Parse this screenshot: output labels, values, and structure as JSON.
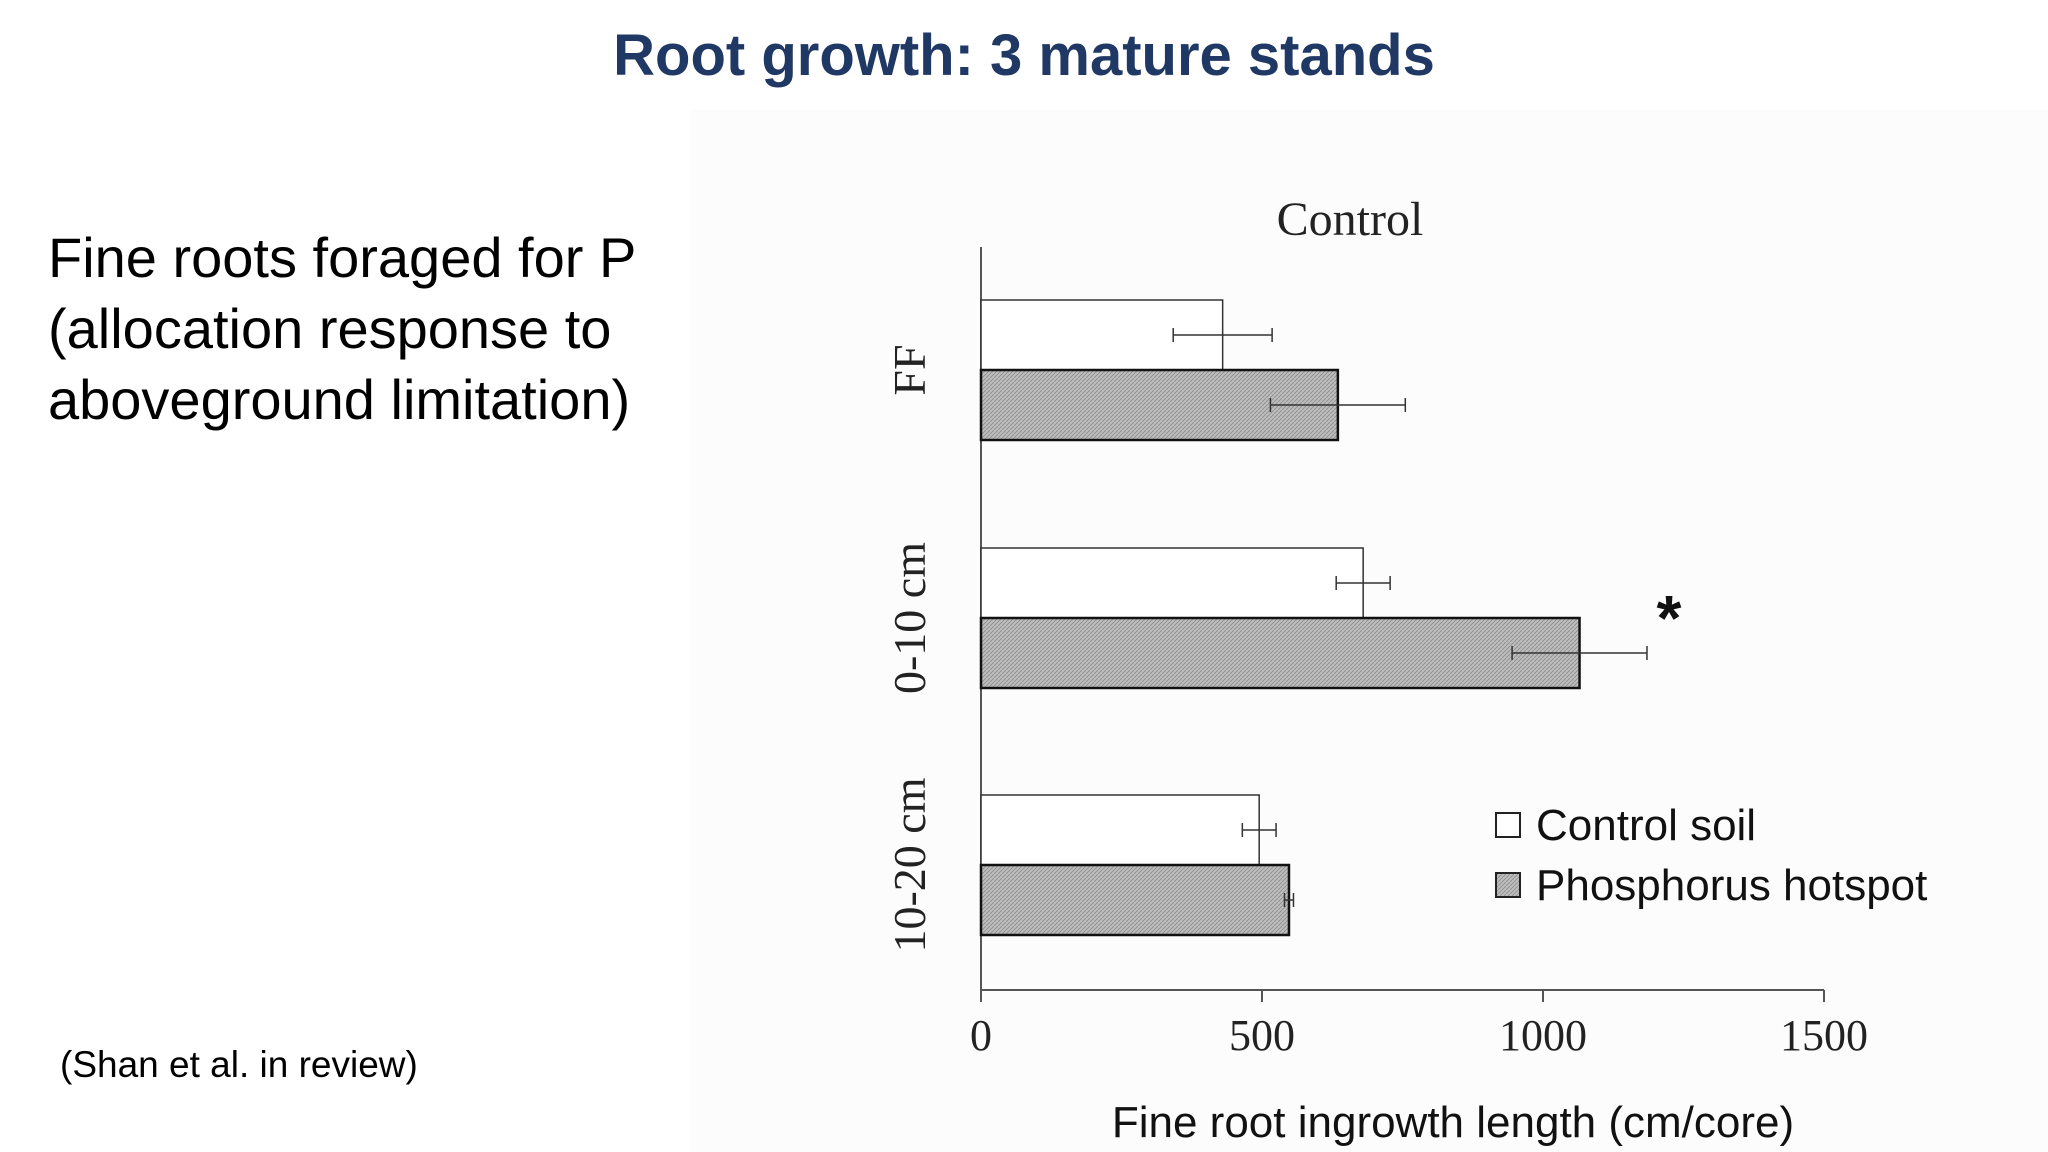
{
  "slide": {
    "title": "Root growth: 3 mature stands",
    "body_lines": [
      "Fine roots foraged for P",
      "(allocation response to",
      "aboveground limitation)"
    ],
    "citation": "(Shan et al. in review)"
  },
  "colors": {
    "title": "#1f3864",
    "bar_control": "#ffffff",
    "bar_phosphorus": "#bdbdbd",
    "axis": "#555555"
  },
  "chart_data": {
    "type": "bar",
    "orientation": "horizontal",
    "title": "Control",
    "xlabel": "Fine root ingrowth length (cm/core)",
    "ylabel": "",
    "xlim": [
      0,
      1500
    ],
    "xticks": [
      0,
      500,
      1000,
      1500
    ],
    "grid": false,
    "legend_position": "bottom-right",
    "categories": [
      "FF",
      "0-10 cm",
      "10-20 cm"
    ],
    "series": [
      {
        "name": "Control soil",
        "values": [
          430,
          680,
          495
        ],
        "error": [
          88,
          48,
          30
        ]
      },
      {
        "name": "Phosphorus hotspot",
        "values": [
          635,
          1065,
          548
        ],
        "error": [
          120,
          120,
          8
        ]
      }
    ],
    "annotations": [
      {
        "text": "*",
        "category": "0-10 cm",
        "series": "Phosphorus hotspot"
      }
    ]
  }
}
